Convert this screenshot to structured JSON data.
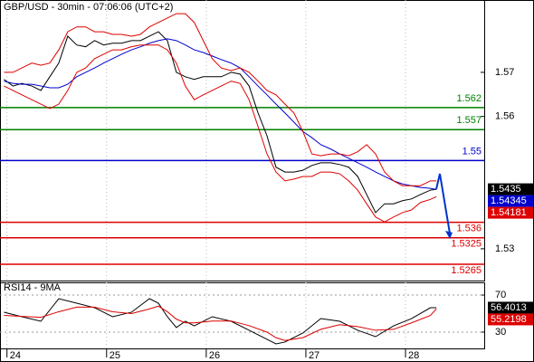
{
  "chart_data": [
    {
      "type": "line",
      "title": "GBP/USD - 30min - 07:06:06 (UTC+2)",
      "x": [
        23.97,
        24.06,
        24.15,
        24.25,
        24.34,
        24.43,
        24.52,
        24.61,
        24.7,
        24.79,
        24.88,
        24.97,
        25.06,
        25.15,
        25.25,
        25.34,
        25.43,
        25.52,
        25.61,
        25.7,
        25.79,
        25.88,
        25.97,
        26.06,
        26.15,
        26.25,
        26.34,
        26.43,
        26.52,
        26.61,
        26.7,
        26.79,
        26.88,
        26.97,
        27.06,
        27.15,
        27.25,
        27.34,
        27.43,
        27.52,
        27.61,
        27.7,
        27.79,
        27.88,
        27.97,
        28.06,
        28.15,
        28.25,
        28.31
      ],
      "series": [
        {
          "color": "#000000",
          "show_last": true,
          "values": [
            1.5684,
            1.5669,
            1.5675,
            1.5669,
            1.5659,
            1.569,
            1.5721,
            1.5782,
            1.5762,
            1.5758,
            1.5772,
            1.5762,
            1.5766,
            1.5766,
            1.5772,
            1.5772,
            1.5782,
            1.5792,
            1.5772,
            1.57,
            1.569,
            1.5684,
            1.569,
            1.569,
            1.569,
            1.57,
            1.5696,
            1.5669,
            1.5608,
            1.5556,
            1.5485,
            1.5474,
            1.5474,
            1.5478,
            1.5489,
            1.5495,
            1.5495,
            1.5491,
            1.5485,
            1.5464,
            1.5423,
            1.5382,
            1.5402,
            1.5402,
            1.5409,
            1.5413,
            1.5423,
            1.5433,
            1.5435
          ]
        },
        {
          "color": "#0000cc",
          "show_last": true,
          "values": [
            1.568,
            1.5675,
            1.5673,
            1.5673,
            1.5669,
            1.5665,
            1.5665,
            1.5673,
            1.569,
            1.57,
            1.571,
            1.5721,
            1.5731,
            1.5741,
            1.5751,
            1.5758,
            1.5766,
            1.5772,
            1.5776,
            1.5772,
            1.5762,
            1.5751,
            1.5745,
            1.5737,
            1.5729,
            1.5721,
            1.571,
            1.569,
            1.5669,
            1.5649,
            1.5628,
            1.5608,
            1.5587,
            1.5566,
            1.5552,
            1.5536,
            1.5526,
            1.5515,
            1.5505,
            1.5495,
            1.5485,
            1.5474,
            1.5464,
            1.5454,
            1.5447,
            1.5443,
            1.5439,
            1.5437,
            1.54345
          ]
        },
        {
          "color": "#dd0000",
          "show_last": true,
          "values": [
            1.5669,
            1.5659,
            1.5649,
            1.5638,
            1.5628,
            1.5618,
            1.5628,
            1.5659,
            1.57,
            1.571,
            1.5731,
            1.5741,
            1.5751,
            1.5751,
            1.5758,
            1.5762,
            1.5762,
            1.5762,
            1.5751,
            1.5721,
            1.5669,
            1.5638,
            1.5649,
            1.5659,
            1.5669,
            1.568,
            1.5675,
            1.5638,
            1.5577,
            1.5515,
            1.5474,
            1.5454,
            1.5458,
            1.5464,
            1.5464,
            1.5474,
            1.5474,
            1.547,
            1.5454,
            1.5433,
            1.5402,
            1.5372,
            1.5361,
            1.5372,
            1.5382,
            1.5388,
            1.5405,
            1.5412,
            1.54181
          ]
        },
        {
          "color": "#dd0000",
          "show_last": false,
          "values": [
            1.57,
            1.57,
            1.571,
            1.5721,
            1.5716,
            1.5721,
            1.5751,
            1.5792,
            1.5803,
            1.5803,
            1.5792,
            1.5792,
            1.5786,
            1.5786,
            1.5782,
            1.5786,
            1.5803,
            1.5813,
            1.5823,
            1.5833,
            1.5833,
            1.5813,
            1.5772,
            1.5731,
            1.571,
            1.5704,
            1.571,
            1.57,
            1.568,
            1.5659,
            1.5649,
            1.5628,
            1.5608,
            1.5566,
            1.5515,
            1.5511,
            1.5515,
            1.5515,
            1.5511,
            1.552,
            1.5536,
            1.5515,
            1.5474,
            1.5454,
            1.5443,
            1.5443,
            1.5443,
            1.5454,
            1.5454
          ]
        }
      ],
      "levels": [
        {
          "value": 1.562,
          "color": "#008000"
        },
        {
          "value": 1.557,
          "color": "#008000"
        },
        {
          "value": 1.55,
          "color": "#0000cc"
        },
        {
          "value": 1.536,
          "color": "#dd0000"
        },
        {
          "value": 1.5325,
          "color": "#dd0000"
        },
        {
          "value": 1.5265,
          "color": "#dd0000"
        }
      ],
      "xlim": [
        23.93,
        28.79
      ],
      "ylim": [
        1.5228,
        1.5864
      ],
      "yticks": [
        1.53,
        1.56,
        1.57
      ]
    },
    {
      "type": "line",
      "title": "RSI14 - 9MA",
      "x": [
        23.97,
        24.15,
        24.34,
        24.52,
        24.7,
        24.88,
        25.06,
        25.25,
        25.43,
        25.52,
        25.61,
        25.7,
        25.79,
        25.88,
        26.06,
        26.25,
        26.43,
        26.61,
        26.7,
        26.79,
        26.97,
        27.15,
        27.34,
        27.52,
        27.7,
        27.88,
        28.06,
        28.25,
        28.31
      ],
      "series": [
        {
          "color": "#000000",
          "show_last": true,
          "values": [
            51.5,
            46.6,
            41.7,
            66.1,
            61.2,
            56.3,
            46.6,
            51.5,
            66.1,
            61.2,
            46.6,
            34.9,
            41.7,
            36.8,
            46.6,
            41.7,
            32.0,
            22.2,
            17.3,
            19.3,
            29.0,
            44.6,
            41.7,
            32.0,
            25.1,
            36.8,
            44.6,
            56.3,
            56.4013
          ]
        },
        {
          "color": "#dd0000",
          "show_last": true,
          "values": [
            48,
            47,
            46,
            52,
            57,
            57,
            52,
            50,
            55,
            58,
            52,
            44,
            40,
            40,
            42,
            42,
            37,
            30,
            24,
            21,
            24,
            33,
            38,
            36,
            32,
            33,
            40,
            48,
            55.2198
          ]
        }
      ],
      "xlim": [
        23.93,
        28.79
      ],
      "ylim": [
        12.4,
        83.7
      ],
      "yticks": [
        30,
        70
      ],
      "xticks": [
        24,
        25,
        26,
        27,
        28
      ]
    }
  ]
}
